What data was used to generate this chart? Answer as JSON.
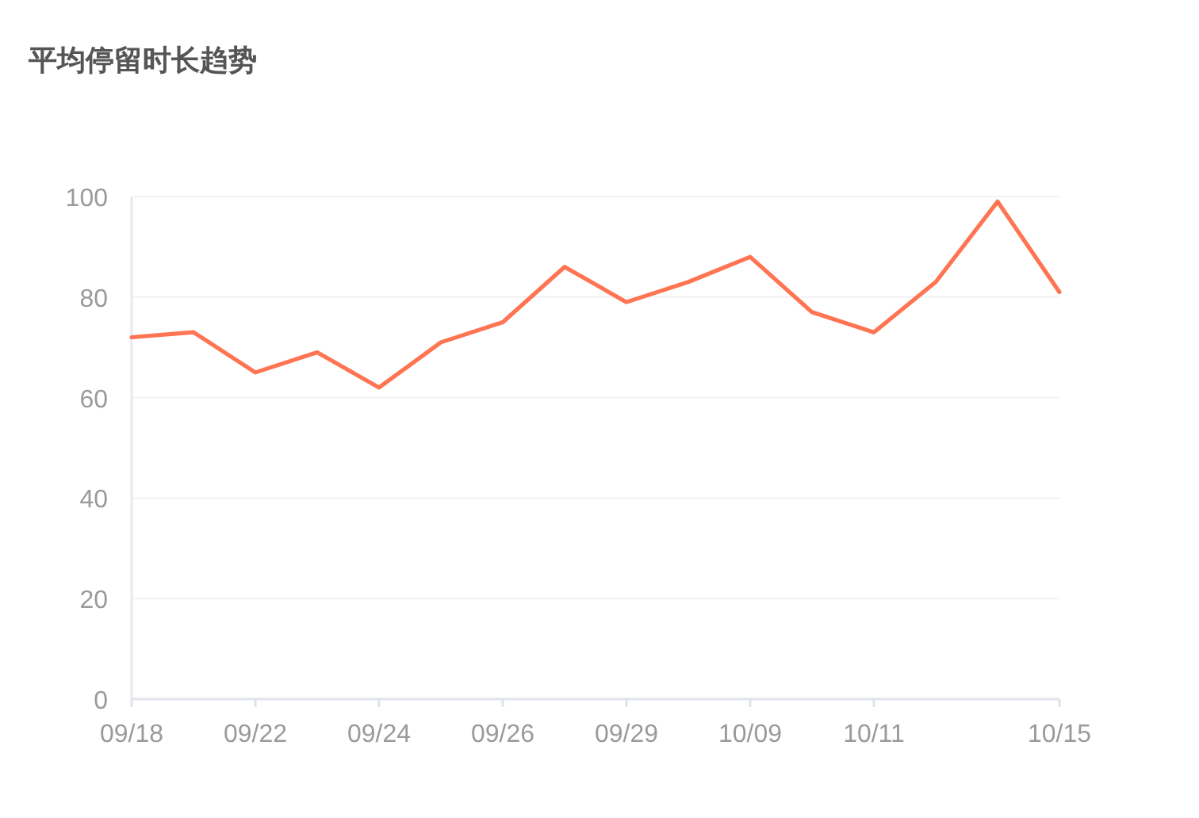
{
  "chart_data": {
    "type": "line",
    "title": "平均停留时长趋势",
    "categories": [
      "09/18",
      null,
      "09/22",
      null,
      "09/24",
      null,
      "09/26",
      null,
      "09/29",
      null,
      "10/09",
      null,
      "10/11",
      null,
      null,
      "10/15"
    ],
    "values": [
      72,
      73,
      65,
      69,
      62,
      71,
      75,
      86,
      79,
      83,
      88,
      77,
      73,
      83,
      99,
      81
    ],
    "color": "#ff7452",
    "ylim": [
      0,
      100
    ],
    "yticks": [
      0,
      20,
      40,
      60,
      80,
      100
    ],
    "grid": "y",
    "marker": "none",
    "line_style": "solid"
  }
}
